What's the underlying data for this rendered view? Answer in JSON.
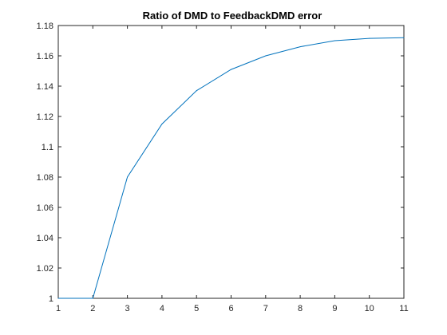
{
  "chart_data": {
    "type": "line",
    "title": "Ratio of DMD to FeedbackDMD error",
    "xlabel": "",
    "ylabel": "",
    "xlim": [
      1,
      11
    ],
    "ylim": [
      1,
      1.18
    ],
    "xticks": [
      1,
      2,
      3,
      4,
      5,
      6,
      7,
      8,
      9,
      10,
      11
    ],
    "xtick_labels": [
      "1",
      "2",
      "3",
      "4",
      "5",
      "6",
      "7",
      "8",
      "9",
      "10",
      "11"
    ],
    "yticks": [
      1,
      1.02,
      1.04,
      1.06,
      1.08,
      1.1,
      1.12,
      1.14,
      1.16,
      1.18
    ],
    "ytick_labels": [
      "1",
      "1.02",
      "1.04",
      "1.06",
      "1.08",
      "1.1",
      "1.12",
      "1.14",
      "1.16",
      "1.18"
    ],
    "grid": false,
    "legend": "none",
    "series": [
      {
        "x": [
          1,
          2,
          3,
          4,
          5,
          6,
          7,
          8,
          9,
          10,
          11
        ],
        "values": [
          1.0,
          1.0,
          1.08,
          1.115,
          1.137,
          1.151,
          1.16,
          1.166,
          1.17,
          1.1715,
          1.172
        ],
        "color": "#0072BD"
      }
    ]
  }
}
